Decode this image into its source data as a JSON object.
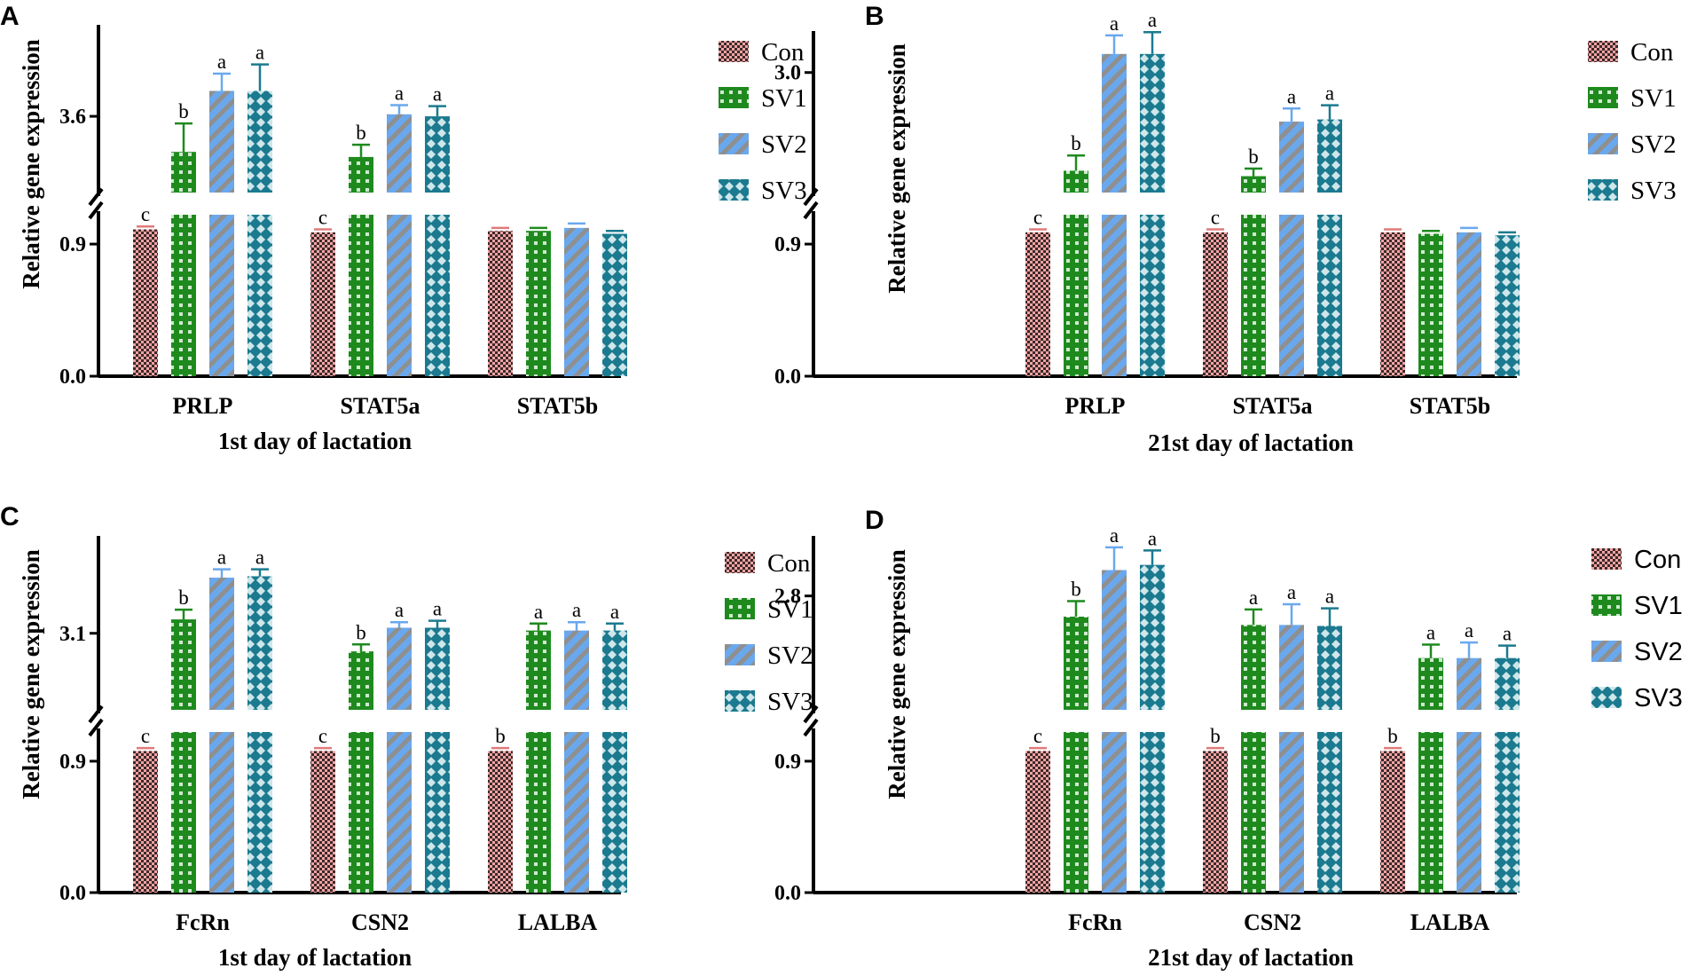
{
  "figure": {
    "y_axis_title": "Relative gene expression",
    "series_styles": [
      {
        "name": "Con",
        "fill": "#F4A3A3",
        "pattern": "checker",
        "pattern_color": "#3a2a2a",
        "error_color": "#e07a7a"
      },
      {
        "name": "SV1",
        "fill": "#1E8A1E",
        "pattern": "grid",
        "pattern_color": "#cfe8cf",
        "error_color": "#1E8A1E"
      },
      {
        "name": "SV2",
        "fill": "#6AA8EE",
        "pattern": "diag",
        "pattern_color": "#8f8f8f",
        "error_color": "#6AA8EE"
      },
      {
        "name": "SV3",
        "fill": "#1B7A8F",
        "pattern": "diamond",
        "pattern_color": "#cfe6ea",
        "error_color": "#1B7A8F"
      }
    ]
  },
  "chart_data": [
    {
      "type": "bar",
      "panel": "A",
      "xlabel": "1st day of lactation",
      "ylabel": "Relative gene expression",
      "categories": [
        "PRLP",
        "STAT5a",
        "STAT5b"
      ],
      "legend": [
        "Con",
        "SV1",
        "SV2",
        "SV3"
      ],
      "legend_font": "serif",
      "ylim_lower": [
        0,
        1.1
      ],
      "ylim_upper": [
        2.85,
        4.5
      ],
      "ticks_lower": [
        "0.0",
        "0.9"
      ],
      "tick_upper": "3.6",
      "tick_upper_value": 3.6,
      "series": [
        {
          "name": "Con",
          "values": [
            1.0,
            0.98,
            0.99
          ],
          "errors": [
            0.02,
            0.02,
            0.02
          ],
          "letters": [
            "c",
            "c",
            ""
          ]
        },
        {
          "name": "SV1",
          "values": [
            3.25,
            3.2,
            0.99
          ],
          "errors": [
            0.28,
            0.12,
            0.02
          ],
          "letters": [
            "b",
            "b",
            ""
          ]
        },
        {
          "name": "SV2",
          "values": [
            3.85,
            3.62,
            1.01
          ],
          "errors": [
            0.17,
            0.09,
            0.03
          ],
          "letters": [
            "a",
            "a",
            ""
          ]
        },
        {
          "name": "SV3",
          "values": [
            3.85,
            3.6,
            0.97
          ],
          "errors": [
            0.26,
            0.1,
            0.02
          ],
          "letters": [
            "a",
            "a",
            ""
          ]
        }
      ]
    },
    {
      "type": "bar",
      "panel": "B",
      "xlabel": "21st day of lactation",
      "ylabel": "Relative gene expression",
      "categories": [
        "PRLP",
        "STAT5a",
        "STAT5b"
      ],
      "legend": [
        "Con",
        "SV1",
        "SV2",
        "SV3"
      ],
      "legend_font": "serif",
      "ylim_lower": [
        0,
        1.1
      ],
      "ylim_upper": [
        1.9,
        3.38
      ],
      "ticks_lower": [
        "0.0",
        "0.9"
      ],
      "tick_upper": "3.0",
      "tick_upper_value": 3.0,
      "series": [
        {
          "name": "Con",
          "values": [
            0.98,
            0.98,
            0.98
          ],
          "errors": [
            0.02,
            0.02,
            0.02
          ],
          "letters": [
            "c",
            "c",
            ""
          ]
        },
        {
          "name": "SV1",
          "values": [
            2.1,
            2.05,
            0.97
          ],
          "errors": [
            0.14,
            0.07,
            0.02
          ],
          "letters": [
            "b",
            "b",
            ""
          ]
        },
        {
          "name": "SV2",
          "values": [
            3.17,
            2.55,
            0.98
          ],
          "errors": [
            0.17,
            0.12,
            0.03
          ],
          "letters": [
            "a",
            "a",
            ""
          ]
        },
        {
          "name": "SV3",
          "values": [
            3.17,
            2.57,
            0.96
          ],
          "errors": [
            0.2,
            0.13,
            0.02
          ],
          "letters": [
            "a",
            "a",
            ""
          ]
        }
      ]
    },
    {
      "type": "bar",
      "panel": "C",
      "xlabel": "1st day of lactation",
      "ylabel": "Relative gene expression",
      "categories": [
        "FcRn",
        "CSN2",
        "LALBA"
      ],
      "legend": [
        "Con",
        "SV1",
        "SV2",
        "SV3"
      ],
      "legend_font": "serif",
      "ylim_lower": [
        0,
        1.1
      ],
      "ylim_upper": [
        2.55,
        3.8
      ],
      "ticks_lower": [
        "0.0",
        "0.9"
      ],
      "tick_upper": "3.1",
      "tick_upper_value": 3.1,
      "series": [
        {
          "name": "Con",
          "values": [
            0.97,
            0.97,
            0.97
          ],
          "errors": [
            0.02,
            0.02,
            0.02
          ],
          "letters": [
            "c",
            "c",
            "b"
          ]
        },
        {
          "name": "SV1",
          "values": [
            3.2,
            2.97,
            3.12
          ],
          "errors": [
            0.07,
            0.05,
            0.05
          ],
          "letters": [
            "b",
            "b",
            "a"
          ]
        },
        {
          "name": "SV2",
          "values": [
            3.5,
            3.14,
            3.12
          ],
          "errors": [
            0.06,
            0.04,
            0.06
          ],
          "letters": [
            "a",
            "a",
            "a"
          ]
        },
        {
          "name": "SV3",
          "values": [
            3.51,
            3.14,
            3.12
          ],
          "errors": [
            0.05,
            0.05,
            0.05
          ],
          "letters": [
            "a",
            "a",
            "a"
          ]
        }
      ]
    },
    {
      "type": "bar",
      "panel": "D",
      "xlabel": "21st day of lactation",
      "ylabel": "Relative gene expression",
      "categories": [
        "FcRn",
        "CSN2",
        "LALBA"
      ],
      "legend": [
        "Con",
        "SV1",
        "SV2",
        "SV3"
      ],
      "legend_font": "sans",
      "ylim_lower": [
        0,
        1.1
      ],
      "ylim_upper": [
        1.7,
        3.38
      ],
      "ticks_lower": [
        "0.0",
        "0.9"
      ],
      "tick_upper": "2.8",
      "tick_upper_value": 2.8,
      "series": [
        {
          "name": "Con",
          "values": [
            0.97,
            0.97,
            0.97
          ],
          "errors": [
            0.02,
            0.02,
            0.02
          ],
          "letters": [
            "c",
            "b",
            "b"
          ]
        },
        {
          "name": "SV1",
          "values": [
            2.6,
            2.52,
            2.2
          ],
          "errors": [
            0.15,
            0.15,
            0.13
          ],
          "letters": [
            "b",
            "a",
            "a"
          ]
        },
        {
          "name": "SV2",
          "values": [
            3.05,
            2.52,
            2.2
          ],
          "errors": [
            0.22,
            0.2,
            0.15
          ],
          "letters": [
            "a",
            "a",
            "a"
          ]
        },
        {
          "name": "SV3",
          "values": [
            3.1,
            2.51,
            2.2
          ],
          "errors": [
            0.14,
            0.17,
            0.12
          ],
          "letters": [
            "a",
            "a",
            "a"
          ]
        }
      ]
    }
  ]
}
